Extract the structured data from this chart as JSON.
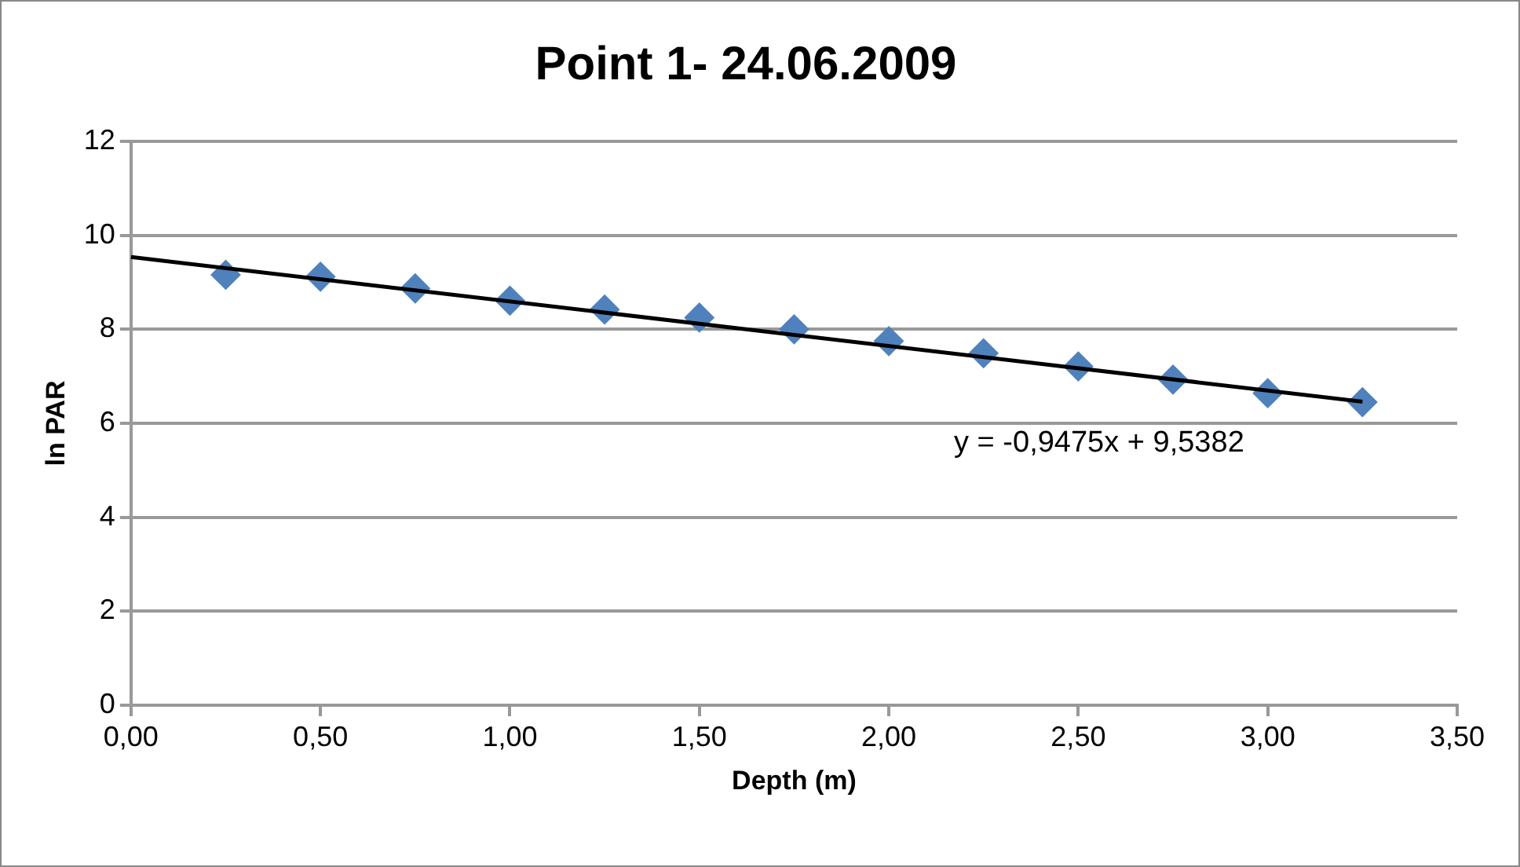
{
  "chart_data": {
    "type": "scatter",
    "title": "Point 1- 24.06.2009",
    "xlabel": "Depth (m)",
    "ylabel": "ln PAR",
    "xlim": [
      0,
      3.5
    ],
    "xticks": [
      {
        "value": 0,
        "label": "0,00"
      },
      {
        "value": 0.5,
        "label": "0,50"
      },
      {
        "value": 1,
        "label": "1,00"
      },
      {
        "value": 1.5,
        "label": "1,50"
      },
      {
        "value": 2,
        "label": "2,00"
      },
      {
        "value": 2.5,
        "label": "2,50"
      },
      {
        "value": 3,
        "label": "3,00"
      },
      {
        "value": 3.5,
        "label": "3,50"
      }
    ],
    "ylim": [
      0,
      12
    ],
    "yticks": [
      0,
      2,
      4,
      6,
      8,
      10,
      12
    ],
    "grid": "y",
    "legend": false,
    "series": [
      {
        "color": "#4f81bd",
        "marker": "diamond",
        "x": [
          0.25,
          0.5,
          0.75,
          1,
          1.25,
          1.5,
          1.75,
          2,
          2.25,
          2.5,
          2.75,
          3,
          3.25
        ],
        "values": [
          9.16,
          9.12,
          8.87,
          8.61,
          8.42,
          8.25,
          8.0,
          7.75,
          7.49,
          7.21,
          6.93,
          6.64,
          6.45
        ]
      },
      {
        "type": "line",
        "color": "#000000",
        "x": [
          0,
          3.25
        ],
        "values": [
          9.54,
          6.46
        ]
      }
    ],
    "annotations": [
      "y = -0,9475x + 9,5382"
    ]
  }
}
